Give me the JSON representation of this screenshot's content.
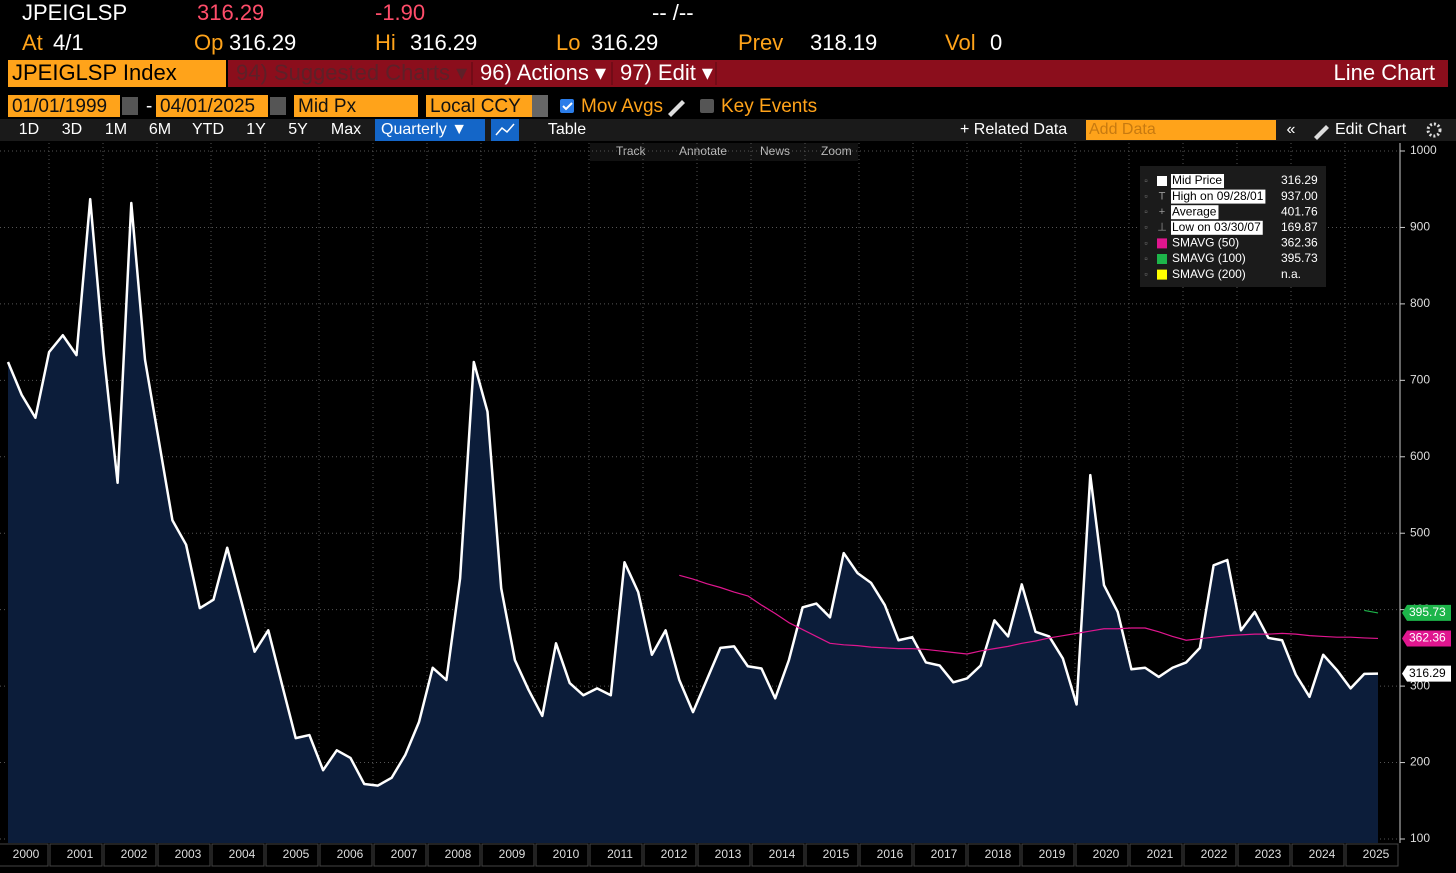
{
  "quote": {
    "ticker": "JPEIGLSP",
    "last": "316.29",
    "change": "-1.90",
    "time": "-- /--",
    "fields": [
      {
        "label": "At",
        "value": "4/1"
      },
      {
        "label": "Op",
        "value": "316.29"
      },
      {
        "label": "Hi",
        "value": "316.29"
      },
      {
        "label": "Lo",
        "value": "316.29"
      },
      {
        "label": "Prev",
        "value": "318.19"
      },
      {
        "label": "Vol",
        "value": "0"
      }
    ]
  },
  "menu": {
    "security": "JPEIGLSP Index",
    "items": [
      "94) Suggested Charts ▾",
      "96) Actions ▾",
      "97) Edit ▾"
    ],
    "view": "Line Chart"
  },
  "controls": {
    "start": "01/01/1999",
    "separator": "-",
    "end": "04/01/2025",
    "field": "Mid Px",
    "currency": "Local CCY",
    "mov_avgs": "Mov Avgs",
    "key_events": "Key Events"
  },
  "toolbar": {
    "periods": [
      "1D",
      "3D",
      "1M",
      "6M",
      "YTD",
      "1Y",
      "5Y",
      "Max"
    ],
    "frequency": "Quarterly ▼",
    "table": "Table",
    "related": "+ Related Data",
    "add_data": "Add Data",
    "back": "«",
    "edit_chart": "Edit Chart"
  },
  "chart_tools": [
    "Track",
    "Annotate",
    "News",
    "Zoom"
  ],
  "chart_data": {
    "type": "line",
    "ylim": [
      100,
      1000
    ],
    "yticks": [
      100,
      200,
      300,
      400,
      500,
      600,
      700,
      800,
      900,
      1000
    ],
    "grid": true,
    "xtick_labels": [
      "2000",
      "2001",
      "2002",
      "2003",
      "2004",
      "2005",
      "2006",
      "2007",
      "2008",
      "2009",
      "2010",
      "2011",
      "2012",
      "2013",
      "2014",
      "2015",
      "2016",
      "2017",
      "2018",
      "2019",
      "2020",
      "2021",
      "2022",
      "2023",
      "2024",
      "2025"
    ],
    "series": [
      {
        "name": "Mid Price",
        "color": "#ffffff",
        "fill": "#0c1d3a",
        "last_label": "316.29",
        "values": [
          724,
          681,
          651,
          737,
          759,
          733,
          937,
          733,
          566,
          932,
          727,
          622,
          517,
          485,
          402,
          413,
          481,
          413,
          345,
          373,
          302,
          232,
          236,
          190,
          216,
          206,
          172,
          169.87,
          180,
          210,
          253,
          324,
          308,
          441,
          724,
          659,
          428,
          334,
          295,
          261,
          356,
          304,
          288,
          297,
          288,
          462,
          423,
          341,
          373,
          308,
          266,
          308,
          350,
          352,
          326,
          323,
          284,
          334,
          403,
          408,
          390,
          474,
          448,
          435,
          406,
          360,
          364,
          331,
          327,
          305,
          310,
          327,
          386,
          365,
          433,
          371,
          365,
          336,
          276,
          576,
          432,
          397,
          322,
          324,
          312,
          324,
          331,
          350,
          458,
          465,
          373,
          397,
          363,
          360,
          315,
          286,
          341,
          321,
          297,
          316,
          316.29
        ]
      },
      {
        "name": "SMAVG (50)",
        "color": "#e0168f",
        "last_label": "362.36",
        "values": [
          null,
          null,
          null,
          null,
          null,
          null,
          null,
          null,
          null,
          null,
          null,
          null,
          null,
          null,
          null,
          null,
          null,
          null,
          null,
          null,
          null,
          null,
          null,
          null,
          null,
          null,
          null,
          null,
          null,
          null,
          null,
          null,
          null,
          null,
          null,
          null,
          null,
          null,
          null,
          null,
          null,
          null,
          null,
          null,
          null,
          null,
          null,
          null,
          null,
          445,
          440,
          434,
          429,
          423,
          418,
          406,
          395,
          383,
          374,
          365,
          356,
          354,
          353,
          351,
          350,
          349,
          349,
          348,
          346,
          344,
          342,
          346,
          349,
          352,
          356,
          359,
          363,
          366,
          369,
          372,
          375,
          375,
          376,
          376,
          371,
          365,
          360,
          362,
          364,
          366,
          367,
          368,
          368,
          369,
          368,
          366,
          365,
          364,
          364,
          363,
          362.36
        ]
      },
      {
        "name": "SMAVG (100)",
        "color": "#1db54a",
        "last_label": "395.73",
        "values": [
          null,
          null,
          null,
          null,
          null,
          null,
          null,
          null,
          null,
          null,
          null,
          null,
          null,
          null,
          null,
          null,
          null,
          null,
          null,
          null,
          null,
          null,
          null,
          null,
          null,
          null,
          null,
          null,
          null,
          null,
          null,
          null,
          null,
          null,
          null,
          null,
          null,
          null,
          null,
          null,
          null,
          null,
          null,
          null,
          null,
          null,
          null,
          null,
          null,
          null,
          null,
          null,
          null,
          null,
          null,
          null,
          null,
          null,
          null,
          null,
          null,
          null,
          null,
          null,
          null,
          null,
          null,
          null,
          null,
          null,
          null,
          null,
          null,
          null,
          null,
          null,
          null,
          null,
          null,
          null,
          null,
          null,
          null,
          null,
          null,
          null,
          null,
          null,
          null,
          null,
          null,
          null,
          null,
          null,
          null,
          null,
          null,
          null,
          null,
          399,
          395.73
        ]
      }
    ],
    "stats": [
      {
        "label": "High on 09/28/01",
        "value": "937.00"
      },
      {
        "label": "Average",
        "value": "401.76"
      },
      {
        "label": "Low on 03/30/07",
        "value": "169.87"
      }
    ],
    "extra_legend": {
      "name": "SMAVG (200)",
      "color": "#ffff00",
      "value": "n.a."
    }
  }
}
